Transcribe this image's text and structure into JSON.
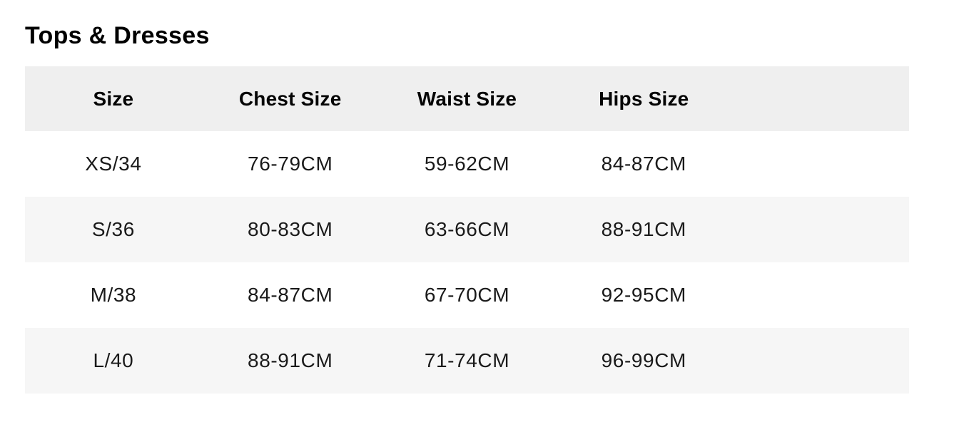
{
  "page": {
    "title": "Tops & Dresses"
  },
  "size_chart": {
    "columns": [
      "Size",
      "Chest Size",
      "Waist Size",
      "Hips Size"
    ],
    "rows": [
      [
        "XS/34",
        "76-79CM",
        "59-62CM",
        "84-87CM"
      ],
      [
        "S/36",
        "80-83CM",
        "63-66CM",
        "88-91CM"
      ],
      [
        "M/38",
        "84-87CM",
        "67-70CM",
        "92-95CM"
      ],
      [
        "L/40",
        "88-91CM",
        "71-74CM",
        "96-99CM"
      ]
    ]
  },
  "colors": {
    "header_bg": "#efefef",
    "stripe_bg": "#f6f6f6",
    "text": "#1a1a1a"
  }
}
